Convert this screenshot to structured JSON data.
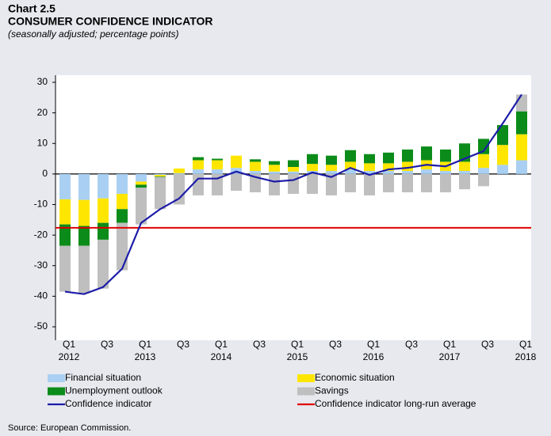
{
  "chart_data": {
    "type": "stacked_bar_line",
    "label": "Chart 2.5",
    "title": "CONSUMER CONFIDENCE INDICATOR",
    "subtitle": "(seasonally adjusted; percentage points)",
    "source": "Source: European Commission.",
    "categories": [
      "Q1",
      null,
      "Q3",
      null,
      "Q1",
      null,
      "Q3",
      null,
      "Q1",
      null,
      "Q3",
      null,
      "Q1",
      null,
      "Q3",
      null,
      "Q1",
      null,
      "Q3",
      null,
      "Q1",
      null,
      "Q3",
      null,
      "Q1"
    ],
    "category_years": [
      "2012",
      null,
      null,
      null,
      "2013",
      null,
      null,
      null,
      "2014",
      null,
      null,
      null,
      "2015",
      null,
      null,
      null,
      "2016",
      null,
      null,
      null,
      "2017",
      null,
      null,
      null,
      "2018"
    ],
    "series": [
      {
        "name": "Financial situation",
        "color": "#a9d0f2",
        "values": [
          -8.3,
          -8.5,
          -8,
          -6.5,
          -2.5,
          -0.3,
          0.3,
          1.5,
          1.5,
          2,
          1,
          0.8,
          0.8,
          1,
          1,
          1.5,
          1,
          1,
          1,
          1.5,
          1,
          1,
          2,
          3,
          4.5
        ]
      },
      {
        "name": "Economic situation",
        "color": "#ffe600",
        "values": [
          -8.2,
          -8.5,
          -8,
          -5,
          -1,
          -0.5,
          1.5,
          3,
          3,
          4,
          3,
          2.2,
          1.5,
          2.3,
          2,
          2.5,
          2.5,
          2.5,
          3,
          3,
          3,
          3,
          4.5,
          6.5,
          8.5
        ]
      },
      {
        "name": "Unemployment outlook",
        "color": "#0b8c1a",
        "values": [
          -7,
          -6.5,
          -5.5,
          -4.5,
          -1,
          -0.2,
          0,
          1,
          0.5,
          0,
          0.8,
          1.2,
          2.2,
          3.2,
          3,
          3.8,
          3,
          3.5,
          4,
          4.5,
          4,
          6,
          5,
          6.5,
          7.5
        ]
      },
      {
        "name": "Savings",
        "color": "#bfbfbf",
        "values": [
          -15,
          -15.5,
          -16,
          -15.5,
          -12,
          -10.5,
          -10,
          -7,
          -7,
          -5.5,
          -6,
          -7,
          -6.5,
          -6.5,
          -7,
          -6,
          -7,
          -6,
          -6,
          -6,
          -6,
          -5,
          -4,
          0,
          5.5
        ]
      },
      {
        "name": "Confidence indicator",
        "color": "#1c1ca8",
        "kind": "line",
        "values": [
          -38.5,
          -39.3,
          -37,
          -31,
          -16,
          -11.5,
          -8,
          -1.5,
          -1.5,
          0.8,
          -1,
          -2.5,
          -2,
          0.5,
          -1,
          2,
          -0.3,
          1.5,
          2,
          3,
          2.5,
          5,
          7.5,
          16.5,
          26
        ]
      }
    ],
    "reference_line": {
      "name": "Confidence indicator long-run average",
      "color": "#e00000",
      "value": -17.6
    },
    "ylim": [
      -50,
      30
    ],
    "yticks": [
      -50,
      -40,
      -30,
      -20,
      -10,
      0,
      10,
      20,
      30
    ]
  }
}
